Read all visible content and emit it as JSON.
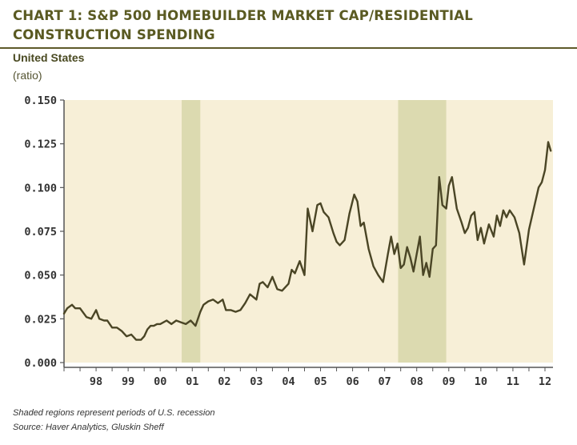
{
  "header": {
    "title": "CHART 1: S&P 500 HOMEBUILDER MARKET CAP/RESIDENTIAL CONSTRUCTION SPENDING",
    "region": "United States",
    "unit": "(ratio)"
  },
  "footer": {
    "note": "Shaded regions represent periods of U.S. recession",
    "source": "Source: Haver Analytics, Gluskin Sheff"
  },
  "colors": {
    "plot_bg": "#f7efd7",
    "recession": "#dcdab0",
    "line": "#4a4525",
    "title": "#5a5a22"
  },
  "chart_data": {
    "type": "line",
    "title": "CHART 1: S&P 500 HOMEBUILDER MARKET CAP/RESIDENTIAL CONSTRUCTION SPENDING",
    "ylabel": "(ratio)",
    "xlabel": "",
    "xlim": [
      1997.5,
      2012.75
    ],
    "ylim": [
      0,
      0.15
    ],
    "y_ticks": [
      0.0,
      0.025,
      0.05,
      0.075,
      0.1,
      0.125,
      0.15
    ],
    "y_tick_labels": [
      "0.000",
      "0.025",
      "0.050",
      "0.075",
      "0.100",
      "0.125",
      "0.150"
    ],
    "x_ticks": [
      1998,
      1999,
      2000,
      2001,
      2002,
      2003,
      2004,
      2005,
      2006,
      2007,
      2008,
      2009,
      2010,
      2011,
      2012
    ],
    "x_tick_labels": [
      "98",
      "99",
      "00",
      "01",
      "02",
      "03",
      "04",
      "05",
      "06",
      "07",
      "08",
      "09",
      "10",
      "11",
      "12"
    ],
    "recessions": [
      [
        2001.17,
        2001.75
      ],
      [
        2007.92,
        2009.42
      ]
    ],
    "series": [
      {
        "name": "Homebuilder market cap / residential construction spending",
        "x": [
          1997.5,
          1997.6,
          1997.75,
          1997.85,
          1998.0,
          1998.2,
          1998.35,
          1998.5,
          1998.6,
          1998.75,
          1998.85,
          1999.0,
          1999.15,
          1999.3,
          1999.45,
          1999.6,
          1999.75,
          1999.9,
          2000.0,
          2000.1,
          2000.2,
          2000.3,
          2000.4,
          2000.5,
          2000.7,
          2000.85,
          2001.0,
          2001.15,
          2001.3,
          2001.45,
          2001.6,
          2001.75,
          2001.85,
          2002.0,
          2002.15,
          2002.3,
          2002.45,
          2002.55,
          2002.7,
          2002.85,
          2003.0,
          2003.15,
          2003.3,
          2003.5,
          2003.6,
          2003.7,
          2003.85,
          2004.0,
          2004.15,
          2004.3,
          2004.5,
          2004.6,
          2004.7,
          2004.85,
          2005.0,
          2005.1,
          2005.25,
          2005.4,
          2005.5,
          2005.6,
          2005.75,
          2005.9,
          2006.0,
          2006.1,
          2006.25,
          2006.4,
          2006.55,
          2006.65,
          2006.75,
          2006.85,
          2007.0,
          2007.15,
          2007.3,
          2007.45,
          2007.6,
          2007.7,
          2007.8,
          2007.9,
          2008.0,
          2008.1,
          2008.2,
          2008.3,
          2008.4,
          2008.5,
          2008.6,
          2008.7,
          2008.8,
          2008.9,
          2009.0,
          2009.1,
          2009.2,
          2009.3,
          2009.42,
          2009.5,
          2009.6,
          2009.75,
          2009.9,
          2010.0,
          2010.1,
          2010.2,
          2010.3,
          2010.4,
          2010.5,
          2010.6,
          2010.75,
          2010.9,
          2011.0,
          2011.1,
          2011.2,
          2011.3,
          2011.4,
          2011.55,
          2011.7,
          2011.85,
          2012.0,
          2012.15,
          2012.3,
          2012.4,
          2012.5,
          2012.6,
          2012.68
        ],
        "values": [
          0.028,
          0.031,
          0.033,
          0.031,
          0.031,
          0.026,
          0.025,
          0.03,
          0.025,
          0.024,
          0.024,
          0.02,
          0.02,
          0.018,
          0.015,
          0.016,
          0.013,
          0.013,
          0.015,
          0.019,
          0.021,
          0.021,
          0.022,
          0.022,
          0.024,
          0.022,
          0.024,
          0.023,
          0.022,
          0.024,
          0.021,
          0.029,
          0.033,
          0.035,
          0.036,
          0.034,
          0.036,
          0.03,
          0.03,
          0.029,
          0.03,
          0.034,
          0.039,
          0.036,
          0.045,
          0.046,
          0.043,
          0.049,
          0.042,
          0.041,
          0.045,
          0.053,
          0.051,
          0.058,
          0.05,
          0.088,
          0.075,
          0.09,
          0.091,
          0.086,
          0.083,
          0.074,
          0.069,
          0.067,
          0.07,
          0.085,
          0.096,
          0.092,
          0.078,
          0.08,
          0.065,
          0.055,
          0.05,
          0.046,
          0.062,
          0.072,
          0.062,
          0.068,
          0.054,
          0.056,
          0.066,
          0.06,
          0.052,
          0.062,
          0.072,
          0.05,
          0.057,
          0.049,
          0.065,
          0.067,
          0.106,
          0.09,
          0.088,
          0.101,
          0.106,
          0.088,
          0.08,
          0.074,
          0.077,
          0.084,
          0.086,
          0.07,
          0.077,
          0.068,
          0.079,
          0.072,
          0.084,
          0.078,
          0.087,
          0.083,
          0.087,
          0.083,
          0.074,
          0.056,
          0.076,
          0.088,
          0.1,
          0.103,
          0.11,
          0.126,
          0.121
        ]
      }
    ]
  }
}
